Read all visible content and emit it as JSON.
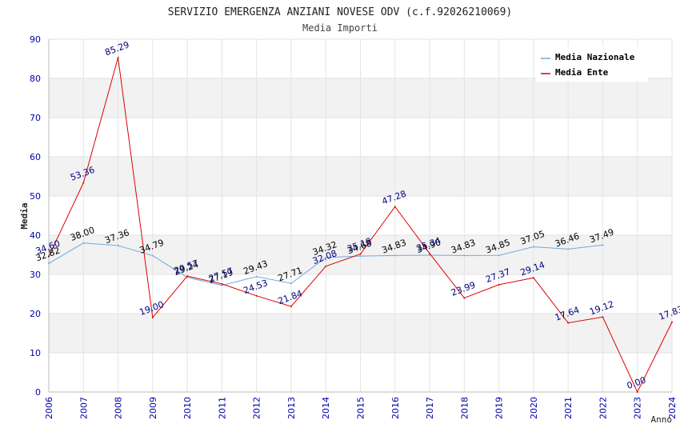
{
  "chart_data": {
    "type": "line",
    "title": "SERVIZIO EMERGENZA ANZIANI NOVESE ODV (c.f.92026210069)",
    "subtitle": "Media Importi",
    "xlabel": "Anno",
    "ylabel": "Media",
    "ylim": [
      0,
      90
    ],
    "yticks": [
      0,
      10,
      20,
      30,
      40,
      50,
      60,
      70,
      80,
      90
    ],
    "categories": [
      "2006",
      "2007",
      "2008",
      "2009",
      "2010",
      "2011",
      "2012",
      "2013",
      "2014",
      "2015",
      "2016",
      "2017",
      "2018",
      "2019",
      "2020",
      "2021",
      "2022",
      "2023",
      "2024"
    ],
    "series": [
      {
        "name": "Media Nazionale",
        "color": "#6fa8dc",
        "label_color": "#000000",
        "values": [
          32.82,
          38.0,
          37.36,
          34.79,
          29.24,
          27.19,
          29.43,
          27.71,
          34.32,
          34.68,
          34.83,
          34.9,
          34.83,
          34.85,
          37.05,
          36.46,
          37.49,
          null,
          null
        ],
        "labels": [
          "32.82",
          "38.00",
          "37.36",
          "34.79",
          "29.24",
          "27.19",
          "29.43",
          "27.71",
          "34.32",
          "34.68",
          "34.83",
          "34.90",
          "34.83",
          "34.85",
          "37.05",
          "36.46",
          "37.49",
          null,
          null
        ]
      },
      {
        "name": "Media Ente",
        "color": "#dd0000",
        "label_color": "#000080",
        "values": [
          34.6,
          53.36,
          85.29,
          19.0,
          29.57,
          27.57,
          24.53,
          21.84,
          32.08,
          35.18,
          47.28,
          35.34,
          23.99,
          27.37,
          29.14,
          17.64,
          19.12,
          0.0,
          17.83
        ],
        "labels": [
          "34.60",
          "53.36",
          "85.29",
          "19.00",
          "29.57",
          "27.57",
          "24.53",
          "21.84",
          "32.08",
          "35.18",
          "47.28",
          "35.34",
          "23.99",
          "27.37",
          "29.14",
          "17.64",
          "19.12",
          "0.00",
          "17.83"
        ]
      }
    ],
    "legend_position": "top-right",
    "grid": true
  }
}
